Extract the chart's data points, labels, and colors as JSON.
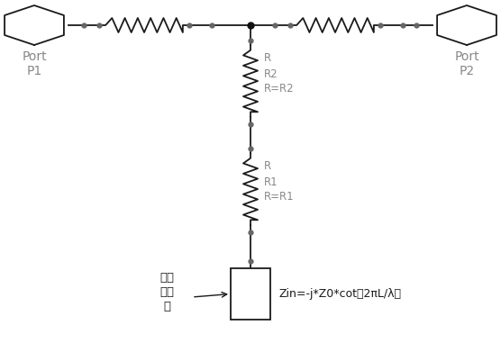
{
  "bg_color": "#ffffff",
  "line_color": "#1a1a1a",
  "gray_color": "#888888",
  "dot_color": "#666666",
  "port1_label": "Port\nP1",
  "port2_label": "Port\nP2",
  "R2_label": "R\nR2\nR=R2",
  "R1_label": "R\nR1\nR=R1",
  "stub_label": "开路\n短截\n线",
  "formula": "Zin=-j*Z0*cot（2πL/λ）",
  "fig_width": 5.56,
  "fig_height": 3.91
}
